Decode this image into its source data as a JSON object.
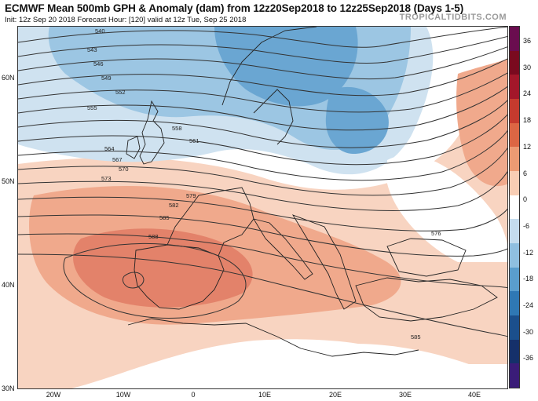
{
  "header": {
    "title": "ECMWF Mean 500mb GPH & Anomaly (dam) from 12z20Sep2018 to 12z25Sep2018 (Days 1-5)",
    "subtitle": "Init: 12z Sep 20 2018   Forecast Hour: [120]   valid at 12z Tue, Sep 25 2018",
    "brand": "TROPICALTIDBITS.COM"
  },
  "latitude_labels": [
    "60N",
    "50N",
    "40N",
    "30N"
  ],
  "longitude_labels": [
    "20W",
    "10W",
    "0",
    "10E",
    "20E",
    "30E",
    "40E"
  ],
  "contour_labels": [
    "540",
    "543",
    "546",
    "549",
    "552",
    "555",
    "558",
    "561",
    "564",
    "567",
    "570",
    "573",
    "576",
    "579",
    "582",
    "585",
    "588"
  ],
  "colorbar": {
    "labels": [
      "36",
      "30",
      "24",
      "18",
      "12",
      "6",
      "0",
      "-6",
      "-12",
      "-18",
      "-24",
      "-30",
      "-36"
    ],
    "colors": [
      "#6a0d4f",
      "#7a0a1f",
      "#a3172a",
      "#c53a2e",
      "#dc6644",
      "#ec9a73",
      "#f8cdb4",
      "#ffffff",
      "#c4dcee",
      "#8fbfe0",
      "#5a9dcd",
      "#2f78b4",
      "#1b4f8c",
      "#15306a",
      "#3a1c78"
    ]
  },
  "anomaly_colors": {
    "strong_positive": "#e3826a",
    "positive": "#f0a98c",
    "weak_positive": "#f8d4c1",
    "weak_negative": "#cfe2f0",
    "negative": "#9cc6e3",
    "strong_negative": "#6aa6d2"
  }
}
